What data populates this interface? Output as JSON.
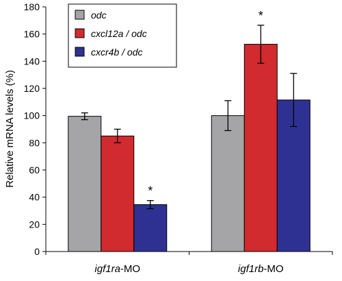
{
  "chart_data": {
    "type": "bar",
    "ylabel": "Relative mRNA levels (%)",
    "ylim": [
      0,
      180
    ],
    "y_ticks": [
      "0",
      "20",
      "40",
      "60",
      "80",
      "100",
      "120",
      "140",
      "160",
      "180"
    ],
    "grid": false,
    "legend_position": "top-left",
    "categories": [
      {
        "italic": "igf1ra",
        "suffix": "-MO"
      },
      {
        "italic": "igf1rb",
        "suffix": "-MO"
      }
    ],
    "series": [
      {
        "name": "odc",
        "color": "#a5a5a7",
        "values": [
          99.5,
          100
        ],
        "errors": [
          2.5,
          11
        ]
      },
      {
        "name": "cxcl12a / odc",
        "color": "#d12a2f",
        "values": [
          85,
          152.5
        ],
        "errors": [
          5,
          14
        ]
      },
      {
        "name": "cxcr4b / odc",
        "color": "#2e3192",
        "values": [
          34.5,
          111.5
        ],
        "errors": [
          3,
          19.5
        ]
      }
    ],
    "annotations": [
      {
        "text": "*",
        "category": 0,
        "series": 2
      },
      {
        "text": "*",
        "category": 1,
        "series": 1
      }
    ]
  }
}
